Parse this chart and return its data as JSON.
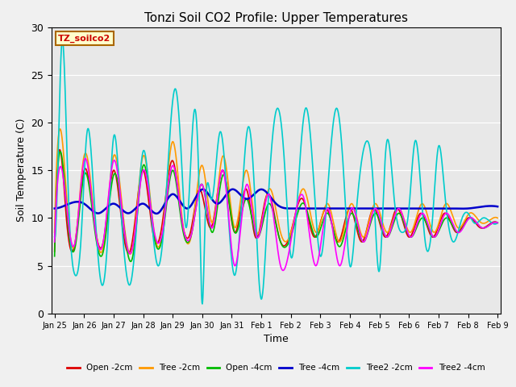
{
  "title": "Tonzi Soil CO2 Profile: Upper Temperatures",
  "xlabel": "Time",
  "ylabel": "Soil Temperature (C)",
  "ylim": [
    0,
    30
  ],
  "background_color": "#f0f0f0",
  "plot_bg_color": "#e8e8e8",
  "annotation_text": "TZ_soilco2",
  "annotation_bg": "#ffffcc",
  "annotation_border": "#aa6600",
  "series": [
    {
      "label": "Open -2cm",
      "color": "#dd0000",
      "lw": 1.2
    },
    {
      "label": "Tree -2cm",
      "color": "#ff9900",
      "lw": 1.2
    },
    {
      "label": "Open -4cm",
      "color": "#00bb00",
      "lw": 1.2
    },
    {
      "label": "Tree -4cm",
      "color": "#0000cc",
      "lw": 1.8
    },
    {
      "label": "Tree2 -2cm",
      "color": "#00cccc",
      "lw": 1.2
    },
    {
      "label": "Tree2 -4cm",
      "color": "#ff00ff",
      "lw": 1.2
    }
  ],
  "tick_labels": [
    "Jan 25",
    "Jan 26",
    "Jan 27",
    "Jan 28",
    "Jan 29",
    "Jan 30",
    "Jan 31",
    "Feb 1",
    "Feb 2",
    "Feb 3",
    "Feb 4",
    "Feb 5",
    "Feb 6",
    "Feb 7",
    "Feb 8",
    "Feb 9"
  ],
  "tick_positions": [
    0,
    1,
    2,
    3,
    4,
    5,
    6,
    7,
    8,
    9,
    10,
    11,
    12,
    13,
    14,
    15
  ],
  "yticks": [
    0,
    5,
    10,
    15,
    20,
    25,
    30
  ],
  "figsize": [
    6.4,
    4.8
  ],
  "dpi": 100
}
